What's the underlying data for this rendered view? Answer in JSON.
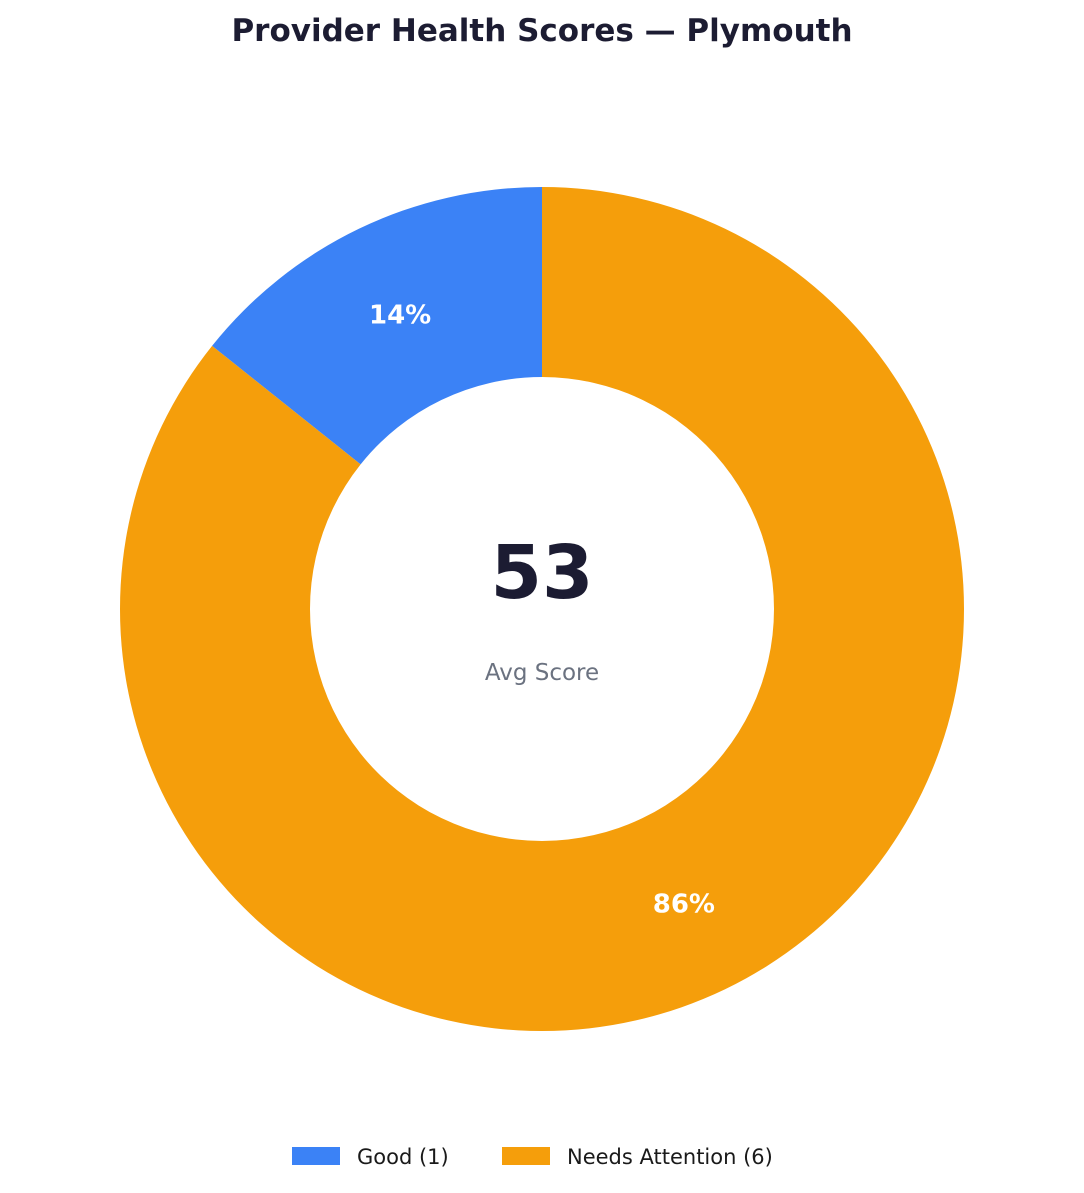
{
  "chart_data": {
    "type": "pie",
    "style": "donut",
    "title": "Provider Health Scores — Plymouth",
    "categories": [
      "Good (1)",
      "Needs Attention (6)"
    ],
    "values": [
      1,
      6
    ],
    "percent_labels": [
      "14%",
      "86%"
    ],
    "colors": [
      "#3b82f6",
      "#f59e0b"
    ],
    "center": {
      "value": "53",
      "label": "Avg Score"
    },
    "legend_position": "bottom-center"
  }
}
